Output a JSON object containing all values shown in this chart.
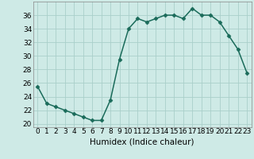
{
  "x": [
    0,
    1,
    2,
    3,
    4,
    5,
    6,
    7,
    8,
    9,
    10,
    11,
    12,
    13,
    14,
    15,
    16,
    17,
    18,
    19,
    20,
    21,
    22,
    23
  ],
  "y": [
    25.5,
    23.0,
    22.5,
    22.0,
    21.5,
    21.0,
    20.5,
    20.5,
    23.5,
    29.5,
    34.0,
    35.5,
    35.0,
    35.5,
    36.0,
    36.0,
    35.5,
    37.0,
    36.0,
    36.0,
    35.0,
    33.0,
    31.0,
    27.5
  ],
  "line_color": "#1a6b5a",
  "marker": "D",
  "marker_size": 2.5,
  "bg_color": "#ceeae6",
  "grid_color": "#aacfca",
  "xlabel": "Humidex (Indice chaleur)",
  "ylabel": "",
  "title": "",
  "xlim": [
    -0.5,
    23.5
  ],
  "ylim": [
    19.5,
    38
  ],
  "yticks": [
    20,
    22,
    24,
    26,
    28,
    30,
    32,
    34,
    36
  ],
  "xticks": [
    0,
    1,
    2,
    3,
    4,
    5,
    6,
    7,
    8,
    9,
    10,
    11,
    12,
    13,
    14,
    15,
    16,
    17,
    18,
    19,
    20,
    21,
    22,
    23
  ],
  "tick_fontsize": 6.5,
  "label_fontsize": 7.5,
  "line_width": 1.1
}
